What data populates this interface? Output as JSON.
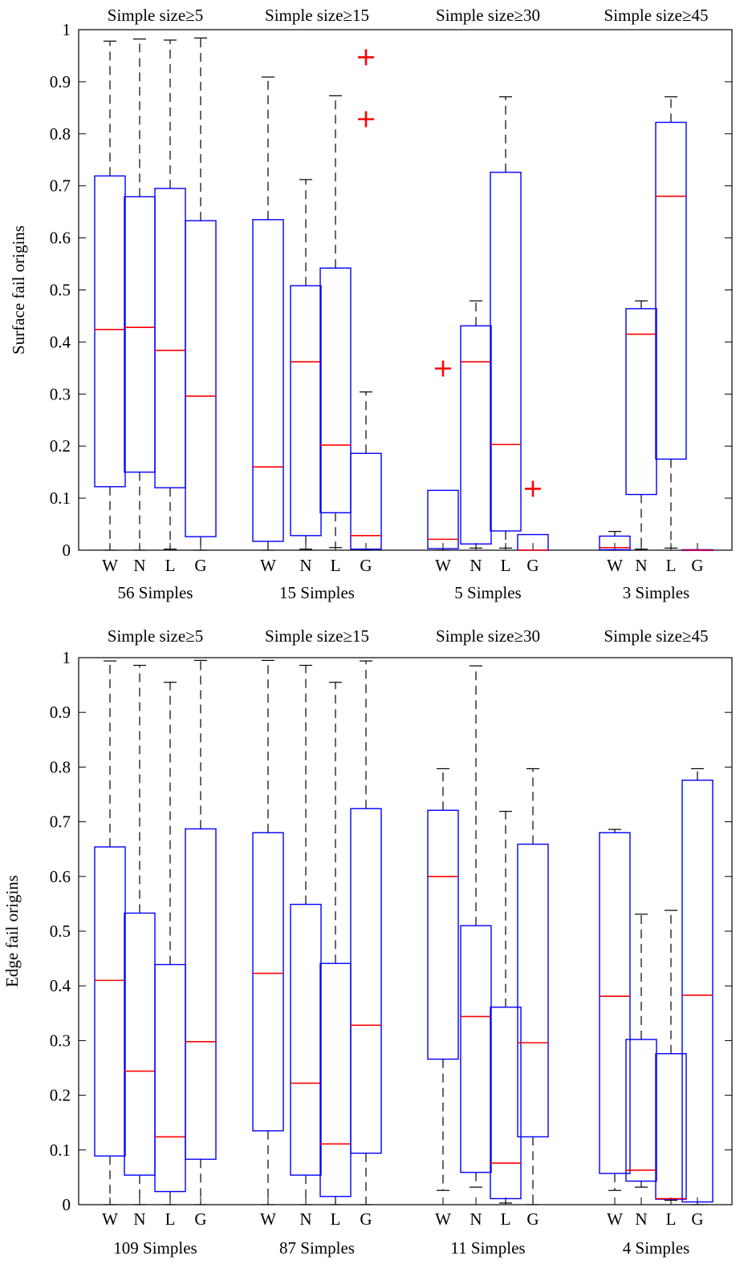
{
  "chart_data": [
    {
      "type": "box",
      "ylabel": "Surface fail origins",
      "ylim": [
        0,
        1
      ],
      "yticks": [
        "0",
        "0.1",
        "0.2",
        "0.3",
        "0.4",
        "0.5",
        "0.6",
        "0.7",
        "0.8",
        "0.9",
        "1"
      ],
      "categories": [
        "W",
        "N",
        "L",
        "G"
      ],
      "groups": [
        {
          "title": "Simple size≥5",
          "count_label": "56 Simples",
          "boxes": [
            {
              "label": "W",
              "whisker_low": 0.0,
              "q1": 0.122,
              "median": 0.424,
              "q3": 0.719,
              "whisker_high": 0.978
            },
            {
              "label": "N",
              "whisker_low": 0.0,
              "q1": 0.15,
              "median": 0.428,
              "q3": 0.679,
              "whisker_high": 0.982
            },
            {
              "label": "L",
              "whisker_low": 0.002,
              "q1": 0.12,
              "median": 0.384,
              "q3": 0.695,
              "whisker_high": 0.98
            },
            {
              "label": "G",
              "whisker_low": 0.0,
              "q1": 0.026,
              "median": 0.296,
              "q3": 0.633,
              "whisker_high": 0.984
            }
          ],
          "outliers": []
        },
        {
          "title": "Simple size≥15",
          "count_label": "15 Simples",
          "boxes": [
            {
              "label": "W",
              "whisker_low": 0.0,
              "q1": 0.017,
              "median": 0.16,
              "q3": 0.635,
              "whisker_high": 0.909
            },
            {
              "label": "N",
              "whisker_low": 0.002,
              "q1": 0.028,
              "median": 0.362,
              "q3": 0.508,
              "whisker_high": 0.712
            },
            {
              "label": "L",
              "whisker_low": 0.005,
              "q1": 0.072,
              "median": 0.202,
              "q3": 0.542,
              "whisker_high": 0.873
            },
            {
              "label": "G",
              "whisker_low": 0.0,
              "q1": 0.002,
              "median": 0.028,
              "q3": 0.186,
              "whisker_high": 0.304
            }
          ],
          "outliers": [
            {
              "label": "G",
              "value": 0.947
            },
            {
              "label": "G",
              "value": 0.828
            }
          ]
        },
        {
          "title": "Simple size≥30",
          "count_label": "5 Simples",
          "boxes": [
            {
              "label": "W",
              "whisker_low": 0.0,
              "q1": 0.003,
              "median": 0.021,
              "q3": 0.115,
              "whisker_high": 0.115
            },
            {
              "label": "N",
              "whisker_low": 0.004,
              "q1": 0.012,
              "median": 0.362,
              "q3": 0.431,
              "whisker_high": 0.479
            },
            {
              "label": "L",
              "whisker_low": 0.004,
              "q1": 0.037,
              "median": 0.203,
              "q3": 0.726,
              "whisker_high": 0.871
            },
            {
              "label": "G",
              "whisker_low": 0.0,
              "q1": 0.0,
              "median": 0.0,
              "q3": 0.03,
              "whisker_high": 0.03
            }
          ],
          "outliers": [
            {
              "label": "W",
              "value": 0.349
            },
            {
              "label": "G",
              "value": 0.118
            }
          ]
        },
        {
          "title": "Simple size≥45",
          "count_label": "3 Simples",
          "boxes": [
            {
              "label": "W",
              "whisker_low": 0.0,
              "q1": 0.001,
              "median": 0.005,
              "q3": 0.027,
              "whisker_high": 0.036
            },
            {
              "label": "N",
              "whisker_low": 0.002,
              "q1": 0.107,
              "median": 0.415,
              "q3": 0.464,
              "whisker_high": 0.479
            },
            {
              "label": "L",
              "whisker_low": 0.004,
              "q1": 0.175,
              "median": 0.68,
              "q3": 0.822,
              "whisker_high": 0.871
            },
            {
              "label": "G",
              "whisker_low": 0.0,
              "q1": 0.0,
              "median": 0.0,
              "q3": 0.001,
              "whisker_high": 0.001
            }
          ],
          "outliers": []
        }
      ]
    },
    {
      "type": "box",
      "ylabel": "Edge fail origins",
      "ylim": [
        0,
        1
      ],
      "yticks": [
        "0",
        "0.1",
        "0.2",
        "0.3",
        "0.4",
        "0.5",
        "0.6",
        "0.7",
        "0.8",
        "0.9",
        "1"
      ],
      "categories": [
        "W",
        "N",
        "L",
        "G"
      ],
      "groups": [
        {
          "title": "Simple size≥5",
          "count_label": "109 Simples",
          "boxes": [
            {
              "label": "W",
              "whisker_low": 0.0,
              "q1": 0.089,
              "median": 0.41,
              "q3": 0.654,
              "whisker_high": 0.994
            },
            {
              "label": "N",
              "whisker_low": 0.0,
              "q1": 0.054,
              "median": 0.244,
              "q3": 0.533,
              "whisker_high": 0.986
            },
            {
              "label": "L",
              "whisker_low": 0.0,
              "q1": 0.024,
              "median": 0.124,
              "q3": 0.439,
              "whisker_high": 0.955
            },
            {
              "label": "G",
              "whisker_low": 0.0,
              "q1": 0.083,
              "median": 0.298,
              "q3": 0.687,
              "whisker_high": 0.995
            }
          ],
          "outliers": []
        },
        {
          "title": "Simple size≥15",
          "count_label": "87 Simples",
          "boxes": [
            {
              "label": "W",
              "whisker_low": 0.0,
              "q1": 0.135,
              "median": 0.423,
              "q3": 0.68,
              "whisker_high": 0.995
            },
            {
              "label": "N",
              "whisker_low": 0.0,
              "q1": 0.054,
              "median": 0.222,
              "q3": 0.549,
              "whisker_high": 0.986
            },
            {
              "label": "L",
              "whisker_low": 0.0,
              "q1": 0.015,
              "median": 0.111,
              "q3": 0.441,
              "whisker_high": 0.955
            },
            {
              "label": "G",
              "whisker_low": 0.0,
              "q1": 0.094,
              "median": 0.328,
              "q3": 0.724,
              "whisker_high": 0.994
            }
          ],
          "outliers": []
        },
        {
          "title": "Simple size≥30",
          "count_label": "11 Simples",
          "boxes": [
            {
              "label": "W",
              "whisker_low": 0.026,
              "q1": 0.266,
              "median": 0.6,
              "q3": 0.721,
              "whisker_high": 0.797
            },
            {
              "label": "N",
              "whisker_low": 0.032,
              "q1": 0.059,
              "median": 0.344,
              "q3": 0.51,
              "whisker_high": 0.985
            },
            {
              "label": "L",
              "whisker_low": 0.003,
              "q1": 0.011,
              "median": 0.076,
              "q3": 0.361,
              "whisker_high": 0.719
            },
            {
              "label": "G",
              "whisker_low": 0.0,
              "q1": 0.124,
              "median": 0.296,
              "q3": 0.659,
              "whisker_high": 0.797
            }
          ],
          "outliers": []
        },
        {
          "title": "Simple size≥45",
          "count_label": "4 Simples",
          "boxes": [
            {
              "label": "W",
              "whisker_low": 0.026,
              "q1": 0.057,
              "median": 0.381,
              "q3": 0.68,
              "whisker_high": 0.686
            },
            {
              "label": "N",
              "whisker_low": 0.032,
              "q1": 0.043,
              "median": 0.063,
              "q3": 0.302,
              "whisker_high": 0.531
            },
            {
              "label": "L",
              "whisker_low": 0.008,
              "q1": 0.01,
              "median": 0.011,
              "q3": 0.276,
              "whisker_high": 0.538
            },
            {
              "label": "G",
              "whisker_low": 0.0,
              "q1": 0.005,
              "median": 0.383,
              "q3": 0.776,
              "whisker_high": 0.797
            }
          ],
          "outliers": []
        }
      ]
    }
  ],
  "colors": {
    "box": "#0000ff",
    "median": "#ff0000",
    "outlier": "#ff0000",
    "whisker": "#000000",
    "axes": "#000000"
  }
}
